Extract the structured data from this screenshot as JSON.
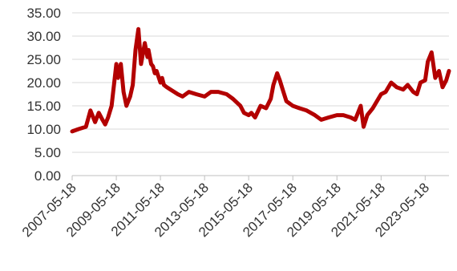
{
  "chart_data": {
    "type": "line",
    "title": "",
    "xlabel": "",
    "ylabel": "",
    "ylim": [
      0,
      35
    ],
    "yticks": [
      "0.00",
      "5.00",
      "10.00",
      "15.00",
      "20.00",
      "25.00",
      "30.00",
      "35.00"
    ],
    "xticks": [
      "2007-05-18",
      "2009-05-18",
      "2011-05-18",
      "2013-05-18",
      "2015-05-18",
      "2017-05-18",
      "2019-05-18",
      "2021-05-18",
      "2023-05-18"
    ],
    "grid": "horizontal",
    "legend": "none",
    "line_color": "#b30000",
    "series": [
      {
        "x": [
          "2007-05-18",
          "2007-09-01",
          "2008-01-01",
          "2008-03-15",
          "2008-06-01",
          "2008-08-01",
          "2008-10-01",
          "2008-11-15",
          "2009-01-01",
          "2009-03-01",
          "2009-05-18",
          "2009-06-15",
          "2009-08-01",
          "2009-09-15",
          "2009-11-01",
          "2010-01-01",
          "2010-02-15",
          "2010-04-01",
          "2010-05-18",
          "2010-07-01",
          "2010-09-01",
          "2010-10-15",
          "2010-11-01",
          "2010-12-15",
          "2011-01-15",
          "2011-02-15",
          "2011-03-15",
          "2011-05-18",
          "2011-06-15",
          "2011-07-15",
          "2011-09-01",
          "2011-11-01",
          "2012-01-01",
          "2012-03-01",
          "2012-05-18",
          "2012-09-01",
          "2013-01-01",
          "2013-05-18",
          "2013-09-01",
          "2014-01-01",
          "2014-05-18",
          "2014-09-01",
          "2015-01-01",
          "2015-03-01",
          "2015-05-18",
          "2015-07-01",
          "2015-09-01",
          "2015-12-01",
          "2016-03-01",
          "2016-05-18",
          "2016-07-01",
          "2016-09-01",
          "2016-10-15",
          "2016-12-01",
          "2017-02-01",
          "2017-05-18",
          "2017-09-01",
          "2018-01-01",
          "2018-05-18",
          "2018-09-01",
          "2019-01-01",
          "2019-05-18",
          "2019-09-01",
          "2020-01-01",
          "2020-03-15",
          "2020-05-01",
          "2020-06-15",
          "2020-08-01",
          "2020-10-01",
          "2021-01-01",
          "2021-05-18",
          "2021-08-01",
          "2021-11-01",
          "2022-02-01",
          "2022-05-18",
          "2022-08-01",
          "2022-11-01",
          "2023-01-01",
          "2023-03-01",
          "2023-05-18",
          "2023-07-01",
          "2023-09-01",
          "2023-11-01",
          "2024-01-01",
          "2024-03-01",
          "2024-05-01",
          "2024-06-15"
        ],
        "values": [
          9.5,
          10.0,
          10.5,
          14.0,
          11.5,
          13.5,
          12.0,
          11.0,
          12.5,
          15.0,
          24.0,
          21.0,
          24.0,
          18.0,
          15.0,
          17.0,
          19.5,
          27.0,
          31.5,
          24.0,
          28.5,
          25.5,
          27.0,
          24.0,
          23.5,
          22.0,
          22.5,
          20.0,
          21.0,
          19.5,
          19.0,
          18.5,
          18.0,
          17.5,
          17.0,
          18.0,
          17.5,
          17.0,
          18.0,
          18.0,
          17.5,
          16.5,
          15.0,
          13.5,
          13.0,
          13.5,
          12.5,
          15.0,
          14.5,
          16.5,
          19.5,
          22.0,
          20.5,
          18.5,
          16.0,
          15.0,
          14.5,
          14.0,
          13.0,
          12.0,
          12.5,
          13.0,
          13.0,
          12.5,
          12.0,
          13.5,
          15.0,
          10.5,
          13.0,
          14.5,
          17.5,
          18.0,
          20.0,
          19.0,
          18.5,
          19.5,
          18.0,
          17.5,
          20.0,
          20.5,
          24.5,
          26.5,
          21.0,
          22.5,
          19.0,
          20.5,
          22.5
        ]
      }
    ]
  }
}
